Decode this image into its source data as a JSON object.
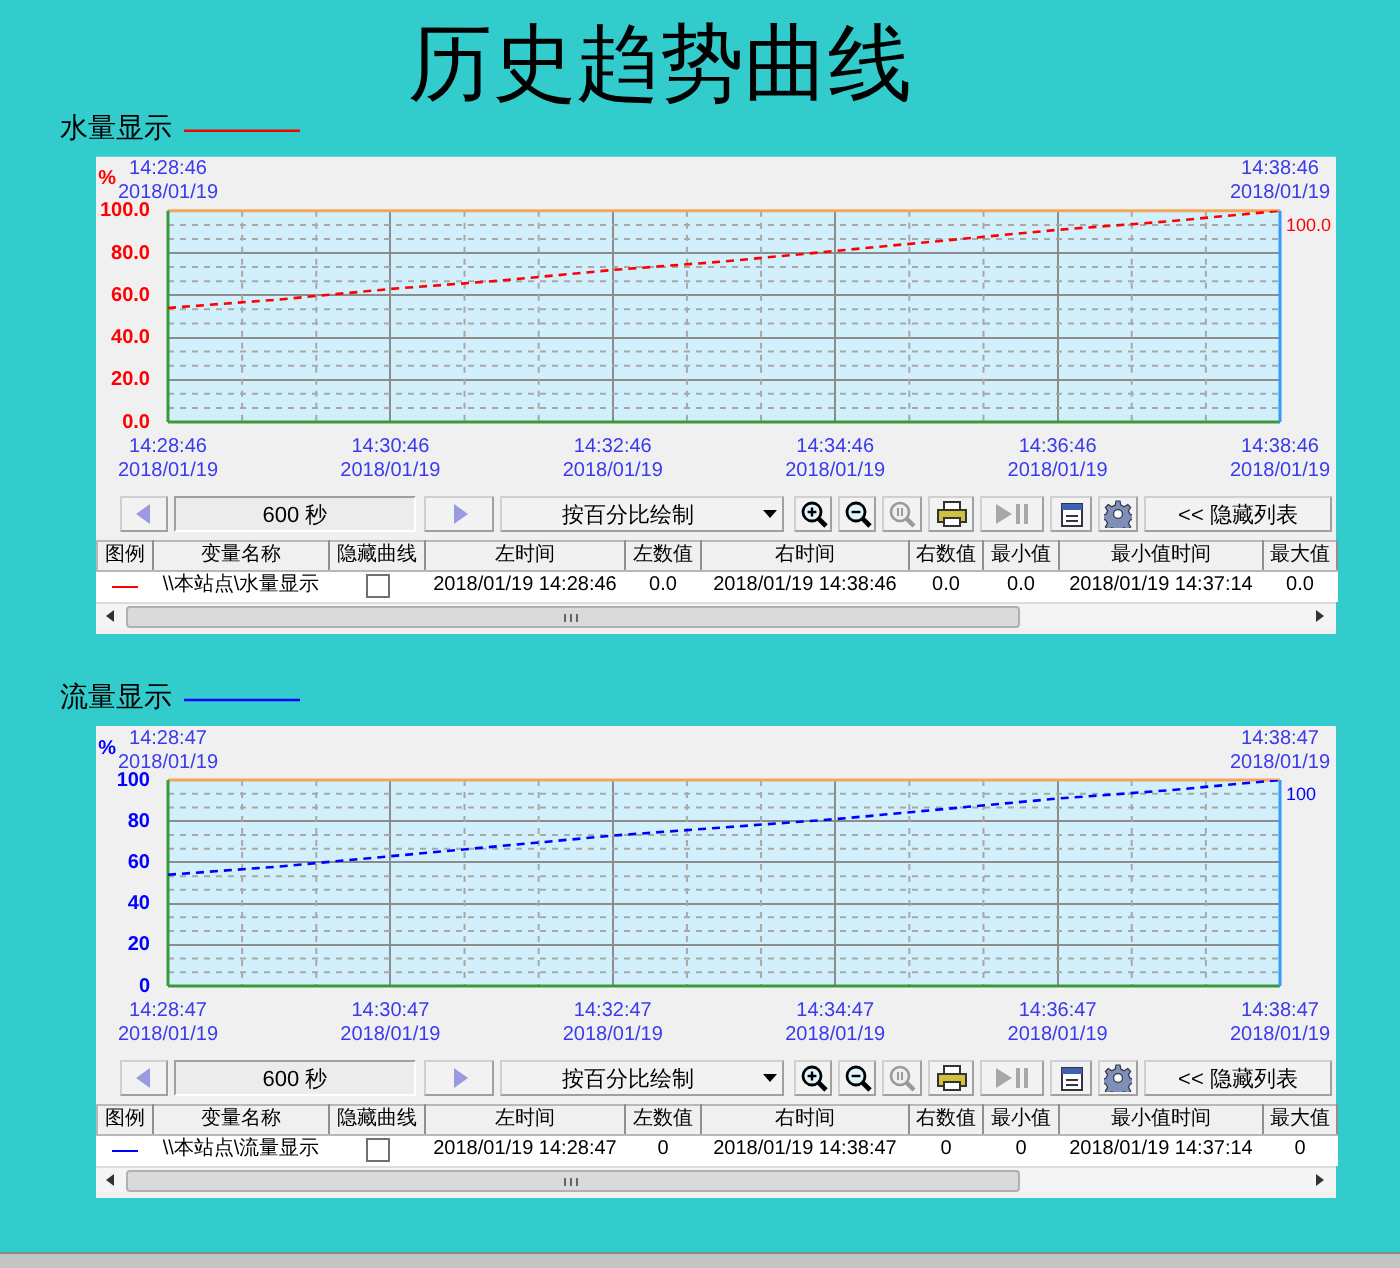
{
  "chart_data": [
    {
      "type": "line",
      "title": "历史趋势曲线",
      "ylabel": "%",
      "x": [
        "2018-01-19T14:28:46",
        "2018-01-19T14:29:46",
        "2018-01-19T14:30:46",
        "2018-01-19T14:31:46",
        "2018-01-19T14:32:46",
        "2018-01-19T14:33:46",
        "2018-01-19T14:34:46",
        "2018-01-19T14:35:46",
        "2018-01-19T14:36:46",
        "2018-01-19T14:37:46",
        "2018-01-19T14:38:46"
      ],
      "series": [
        {
          "name": "水量显示",
          "color": "#ff0000",
          "values": [
            54,
            58,
            63,
            67,
            72,
            76,
            81,
            86,
            91,
            95,
            100
          ],
          "value_labels": [
            null,
            null,
            null,
            null,
            null,
            null,
            null,
            null,
            null,
            null,
            "100.0"
          ]
        }
      ],
      "xlim": [
        "2018-01-19T14:28:46",
        "2018-01-19T14:38:46"
      ],
      "xticks": [
        {
          "value": "2018-01-19T14:28:46",
          "label": "14:28:46\n2018/01/19"
        },
        {
          "value": "2018-01-19T14:30:46",
          "label": "14:30:46\n2018/01/19"
        },
        {
          "value": "2018-01-19T14:32:46",
          "label": "14:32:46\n2018/01/19"
        },
        {
          "value": "2018-01-19T14:34:46",
          "label": "14:34:46\n2018/01/19"
        },
        {
          "value": "2018-01-19T14:36:46",
          "label": "14:36:46\n2018/01/19"
        },
        {
          "value": "2018-01-19T14:38:46",
          "label": "14:38:46\n2018/01/19"
        }
      ],
      "x2lim": [
        "2018-01-19T14:28:46",
        "2018-01-19T14:38:46"
      ],
      "x2ticks": [
        {
          "value": "2018-01-19T14:28:46",
          "label": "14:28:46\n2018/01/19"
        },
        {
          "value": "2018-01-19T14:38:46",
          "label": "14:38:46\n2018/01/19"
        }
      ],
      "ylim": [
        0,
        100
      ],
      "yticks": [
        {
          "value": 0,
          "label": "0.0"
        },
        {
          "value": 20,
          "label": "20.0"
        },
        {
          "value": 40,
          "label": "40.0"
        },
        {
          "value": 60,
          "label": "60.0"
        },
        {
          "value": 80,
          "label": "80.0"
        },
        {
          "value": 100,
          "label": "100.0"
        }
      ],
      "grid": true,
      "legend": "top left",
      "marker": "none",
      "line_style": "dashed",
      "annotations": [
        "600 秒",
        "按百分比绘制",
        "<< 隐藏列表",
        "图例",
        "变量名称",
        "隐藏曲线",
        "左时间",
        "左数值",
        "右时间",
        "右数值",
        "最小值",
        "最小值时间",
        "最大值",
        "\\\\本站点\\水量显示",
        "2018/01/19 14:28:46",
        "0.0",
        "2018/01/19 14:38:46",
        "0.0",
        "0.0",
        "2018/01/19 14:37:14",
        "0.0"
      ]
    },
    {
      "type": "line",
      "ylabel": "%",
      "x": [
        "2018-01-19T14:28:47",
        "2018-01-19T14:29:47",
        "2018-01-19T14:30:47",
        "2018-01-19T14:31:47",
        "2018-01-19T14:32:47",
        "2018-01-19T14:33:47",
        "2018-01-19T14:34:47",
        "2018-01-19T14:35:47",
        "2018-01-19T14:36:47",
        "2018-01-19T14:37:47",
        "2018-01-19T14:38:47"
      ],
      "series": [
        {
          "name": "流量显示",
          "color": "#0000ff",
          "values": [
            54,
            58,
            63,
            68,
            73,
            77,
            81,
            86,
            91,
            95,
            100
          ],
          "value_labels": [
            null,
            null,
            null,
            null,
            null,
            null,
            null,
            null,
            null,
            null,
            "100"
          ]
        }
      ],
      "xlim": [
        "2018-01-19T14:28:47",
        "2018-01-19T14:38:47"
      ],
      "xticks": [
        {
          "value": "2018-01-19T14:28:47",
          "label": "14:28:47\n2018/01/19"
        },
        {
          "value": "2018-01-19T14:30:47",
          "label": "14:30:47\n2018/01/19"
        },
        {
          "value": "2018-01-19T14:32:47",
          "label": "14:32:47\n2018/01/19"
        },
        {
          "value": "2018-01-19T14:34:47",
          "label": "14:34:47\n2018/01/19"
        },
        {
          "value": "2018-01-19T14:36:47",
          "label": "14:36:47\n2018/01/19"
        },
        {
          "value": "2018-01-19T14:38:47",
          "label": "14:38:47\n2018/01/19"
        }
      ],
      "x2lim": [
        "2018-01-19T14:28:47",
        "2018-01-19T14:38:47"
      ],
      "x2ticks": [
        {
          "value": "2018-01-19T14:28:47",
          "label": "14:28:47\n2018/01/19"
        },
        {
          "value": "2018-01-19T14:38:47",
          "label": "14:38:47\n2018/01/19"
        }
      ],
      "ylim": [
        0,
        100
      ],
      "yticks": [
        0,
        20,
        40,
        60,
        80,
        100
      ],
      "grid": true,
      "legend": "top left",
      "marker": "none",
      "line_style": "dashed",
      "annotations": [
        "600 秒",
        "按百分比绘制",
        "<< 隐藏列表",
        "图例",
        "变量名称",
        "隐藏曲线",
        "左时间",
        "左数值",
        "右时间",
        "右数值",
        "最小值",
        "最小值时间",
        "最大值",
        "\\\\本站点\\流量显示",
        "2018/01/19 14:28:47",
        "0",
        "2018/01/19 14:38:47",
        "0",
        "0",
        "2018/01/19 14:37:14",
        "0"
      ]
    }
  ]
}
